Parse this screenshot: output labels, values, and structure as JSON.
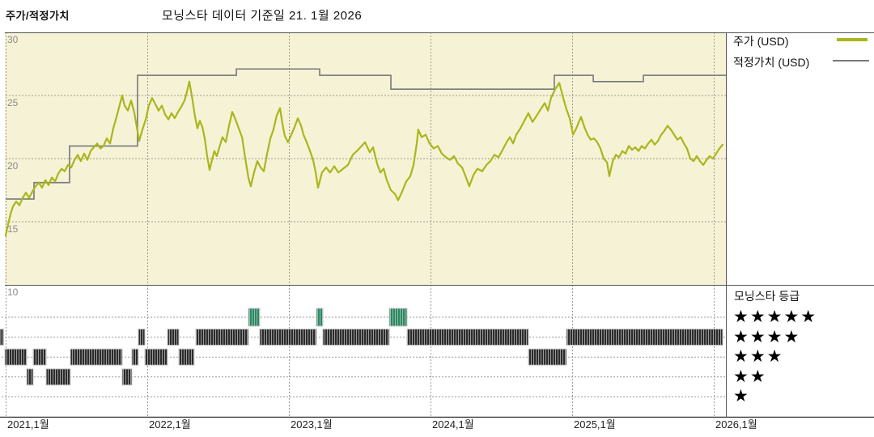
{
  "header": {
    "panel_title": "주가/적정가치",
    "chart_title": "모닝스타 데이터 기준일 21. 1월 2026"
  },
  "legend": {
    "price_label": "주가 (USD)",
    "fair_value_label": "적정가치 (USD)"
  },
  "ratings_panel": {
    "title": "모닝스타 등급",
    "levels": [
      5,
      4,
      3,
      2,
      1
    ],
    "star_glyph": "★"
  },
  "colors": {
    "price_line": "#aab61c",
    "fair_value_line": "#787878",
    "chart_background": "#f6f2d6",
    "rating_bar": "#2b2b2b",
    "rating_bar_gap": "#9a9a9a",
    "five_star_bar": "#2f8563",
    "five_star_gap": "#8cc0aa",
    "grid": "#a09c8e",
    "axis_text": "#222222",
    "ytick_text": "#8c8c8c",
    "border": "#555555"
  },
  "chart_data": {
    "type": "line",
    "title": "모닝스타 데이터 기준일 21. 1월 2026",
    "ylabel": "",
    "xlabel": "",
    "ylim": [
      10,
      30
    ],
    "xlim": [
      2021.0,
      2026.09
    ],
    "grid": true,
    "legend_position": "top-right",
    "y_ticks": [
      30,
      25,
      20,
      15,
      10
    ],
    "x_ticks": [
      {
        "t": 2021,
        "label": "2021,1월"
      },
      {
        "t": 2022,
        "label": "2022,1월"
      },
      {
        "t": 2023,
        "label": "2023,1월"
      },
      {
        "t": 2024,
        "label": "2024,1월"
      },
      {
        "t": 2025,
        "label": "2025,1월"
      },
      {
        "t": 2026,
        "label": "2026,1월"
      }
    ],
    "series": [
      {
        "name": "주가 (USD)",
        "kind": "price",
        "points": [
          [
            2021.0,
            13.9
          ],
          [
            2021.017,
            14.8
          ],
          [
            2021.034,
            15.6
          ],
          [
            2021.051,
            16.2
          ],
          [
            2021.074,
            16.6
          ],
          [
            2021.097,
            16.3
          ],
          [
            2021.12,
            16.9
          ],
          [
            2021.143,
            17.3
          ],
          [
            2021.166,
            16.9
          ],
          [
            2021.189,
            17.4
          ],
          [
            2021.211,
            17.8
          ],
          [
            2021.234,
            18.1
          ],
          [
            2021.257,
            17.7
          ],
          [
            2021.28,
            18.3
          ],
          [
            2021.303,
            17.9
          ],
          [
            2021.326,
            18.5
          ],
          [
            2021.349,
            18.2
          ],
          [
            2021.371,
            18.8
          ],
          [
            2021.394,
            19.2
          ],
          [
            2021.417,
            19.0
          ],
          [
            2021.44,
            19.5
          ],
          [
            2021.463,
            19.3
          ],
          [
            2021.486,
            19.9
          ],
          [
            2021.509,
            20.3
          ],
          [
            2021.531,
            19.8
          ],
          [
            2021.554,
            20.4
          ],
          [
            2021.577,
            19.9
          ],
          [
            2021.6,
            20.6
          ],
          [
            2021.623,
            20.9
          ],
          [
            2021.646,
            21.2
          ],
          [
            2021.669,
            20.8
          ],
          [
            2021.691,
            21.0
          ],
          [
            2021.714,
            21.6
          ],
          [
            2021.737,
            21.2
          ],
          [
            2021.76,
            22.4
          ],
          [
            2021.783,
            23.3
          ],
          [
            2021.806,
            24.3
          ],
          [
            2021.823,
            25.0
          ],
          [
            2021.84,
            24.2
          ],
          [
            2021.863,
            23.8
          ],
          [
            2021.886,
            24.6
          ],
          [
            2021.909,
            23.6
          ],
          [
            2021.926,
            22.5
          ],
          [
            2021.943,
            21.4
          ],
          [
            2021.966,
            22.3
          ],
          [
            2021.989,
            23.1
          ],
          [
            2022.011,
            24.2
          ],
          [
            2022.034,
            24.8
          ],
          [
            2022.057,
            24.3
          ],
          [
            2022.08,
            23.8
          ],
          [
            2022.103,
            24.2
          ],
          [
            2022.126,
            23.5
          ],
          [
            2022.149,
            23.1
          ],
          [
            2022.171,
            23.6
          ],
          [
            2022.194,
            23.2
          ],
          [
            2022.217,
            23.7
          ],
          [
            2022.24,
            24.1
          ],
          [
            2022.263,
            24.6
          ],
          [
            2022.28,
            25.3
          ],
          [
            2022.297,
            26.1
          ],
          [
            2022.32,
            24.6
          ],
          [
            2022.337,
            23.3
          ],
          [
            2022.354,
            22.4
          ],
          [
            2022.371,
            23.0
          ],
          [
            2022.389,
            22.5
          ],
          [
            2022.406,
            21.6
          ],
          [
            2022.423,
            20.2
          ],
          [
            2022.44,
            19.1
          ],
          [
            2022.457,
            19.9
          ],
          [
            2022.474,
            20.6
          ],
          [
            2022.491,
            20.2
          ],
          [
            2022.509,
            20.9
          ],
          [
            2022.531,
            21.7
          ],
          [
            2022.554,
            21.3
          ],
          [
            2022.577,
            22.6
          ],
          [
            2022.6,
            23.7
          ],
          [
            2022.623,
            23.1
          ],
          [
            2022.646,
            22.4
          ],
          [
            2022.669,
            21.7
          ],
          [
            2022.691,
            20.1
          ],
          [
            2022.714,
            18.5
          ],
          [
            2022.731,
            17.8
          ],
          [
            2022.754,
            18.9
          ],
          [
            2022.777,
            19.8
          ],
          [
            2022.8,
            19.3
          ],
          [
            2022.823,
            19.0
          ],
          [
            2022.846,
            20.4
          ],
          [
            2022.869,
            21.6
          ],
          [
            2022.891,
            22.3
          ],
          [
            2022.914,
            23.4
          ],
          [
            2022.937,
            24.0
          ],
          [
            2022.954,
            22.8
          ],
          [
            2022.971,
            21.8
          ],
          [
            2022.994,
            21.3
          ],
          [
            2023.017,
            21.9
          ],
          [
            2023.04,
            22.5
          ],
          [
            2023.063,
            23.2
          ],
          [
            2023.086,
            22.6
          ],
          [
            2023.103,
            21.9
          ],
          [
            2023.126,
            21.3
          ],
          [
            2023.149,
            20.6
          ],
          [
            2023.171,
            19.9
          ],
          [
            2023.189,
            18.9
          ],
          [
            2023.206,
            17.7
          ],
          [
            2023.234,
            18.9
          ],
          [
            2023.263,
            19.3
          ],
          [
            2023.291,
            18.9
          ],
          [
            2023.32,
            19.4
          ],
          [
            2023.349,
            18.9
          ],
          [
            2023.383,
            19.2
          ],
          [
            2023.417,
            19.5
          ],
          [
            2023.451,
            20.3
          ],
          [
            2023.48,
            20.6
          ],
          [
            2023.514,
            21.0
          ],
          [
            2023.537,
            21.3
          ],
          [
            2023.571,
            20.5
          ],
          [
            2023.594,
            20.9
          ],
          [
            2023.623,
            19.6
          ],
          [
            2023.646,
            18.9
          ],
          [
            2023.669,
            19.2
          ],
          [
            2023.691,
            18.3
          ],
          [
            2023.72,
            17.5
          ],
          [
            2023.749,
            17.2
          ],
          [
            2023.771,
            16.7
          ],
          [
            2023.8,
            17.4
          ],
          [
            2023.829,
            18.2
          ],
          [
            2023.857,
            18.6
          ],
          [
            2023.88,
            19.5
          ],
          [
            2023.903,
            21.2
          ],
          [
            2023.914,
            22.3
          ],
          [
            2023.937,
            21.7
          ],
          [
            2023.966,
            21.9
          ],
          [
            2023.994,
            21.2
          ],
          [
            2024.023,
            20.8
          ],
          [
            2024.051,
            21.0
          ],
          [
            2024.08,
            20.4
          ],
          [
            2024.109,
            20.1
          ],
          [
            2024.137,
            19.9
          ],
          [
            2024.166,
            20.2
          ],
          [
            2024.194,
            19.6
          ],
          [
            2024.223,
            19.3
          ],
          [
            2024.251,
            18.5
          ],
          [
            2024.274,
            17.8
          ],
          [
            2024.303,
            18.7
          ],
          [
            2024.331,
            19.2
          ],
          [
            2024.366,
            19.0
          ],
          [
            2024.394,
            19.5
          ],
          [
            2024.423,
            19.8
          ],
          [
            2024.451,
            20.3
          ],
          [
            2024.48,
            20.1
          ],
          [
            2024.509,
            20.7
          ],
          [
            2024.537,
            21.3
          ],
          [
            2024.56,
            21.7
          ],
          [
            2024.583,
            21.2
          ],
          [
            2024.606,
            21.9
          ],
          [
            2024.634,
            22.4
          ],
          [
            2024.663,
            23.0
          ],
          [
            2024.691,
            23.6
          ],
          [
            2024.72,
            22.9
          ],
          [
            2024.749,
            23.4
          ],
          [
            2024.777,
            23.9
          ],
          [
            2024.806,
            24.4
          ],
          [
            2024.829,
            23.8
          ],
          [
            2024.851,
            24.8
          ],
          [
            2024.88,
            25.5
          ],
          [
            2024.909,
            26.0
          ],
          [
            2024.937,
            24.8
          ],
          [
            2024.96,
            23.9
          ],
          [
            2024.983,
            23.2
          ],
          [
            2025.006,
            21.9
          ],
          [
            2025.029,
            22.4
          ],
          [
            2025.051,
            23.0
          ],
          [
            2025.063,
            23.3
          ],
          [
            2025.086,
            22.5
          ],
          [
            2025.109,
            21.9
          ],
          [
            2025.131,
            21.5
          ],
          [
            2025.154,
            21.6
          ],
          [
            2025.177,
            21.3
          ],
          [
            2025.2,
            20.8
          ],
          [
            2025.223,
            20.0
          ],
          [
            2025.246,
            19.7
          ],
          [
            2025.263,
            18.6
          ],
          [
            2025.286,
            19.8
          ],
          [
            2025.309,
            20.3
          ],
          [
            2025.331,
            20.1
          ],
          [
            2025.354,
            20.6
          ],
          [
            2025.377,
            20.4
          ],
          [
            2025.4,
            21.0
          ],
          [
            2025.423,
            20.7
          ],
          [
            2025.446,
            20.9
          ],
          [
            2025.469,
            20.6
          ],
          [
            2025.491,
            21.0
          ],
          [
            2025.514,
            20.8
          ],
          [
            2025.537,
            21.2
          ],
          [
            2025.56,
            21.5
          ],
          [
            2025.583,
            21.1
          ],
          [
            2025.606,
            21.4
          ],
          [
            2025.629,
            21.9
          ],
          [
            2025.651,
            22.2
          ],
          [
            2025.674,
            22.6
          ],
          [
            2025.697,
            22.3
          ],
          [
            2025.72,
            21.9
          ],
          [
            2025.743,
            21.5
          ],
          [
            2025.766,
            21.7
          ],
          [
            2025.789,
            21.2
          ],
          [
            2025.811,
            20.8
          ],
          [
            2025.834,
            20.0
          ],
          [
            2025.857,
            19.8
          ],
          [
            2025.88,
            20.2
          ],
          [
            2025.903,
            19.8
          ],
          [
            2025.926,
            19.5
          ],
          [
            2025.949,
            19.9
          ],
          [
            2025.971,
            20.2
          ],
          [
            2025.994,
            20.0
          ],
          [
            2026.017,
            20.4
          ],
          [
            2026.04,
            20.8
          ],
          [
            2026.063,
            21.1
          ]
        ]
      },
      {
        "name": "적정가치 (USD)",
        "kind": "step",
        "steps": [
          [
            2021.0,
            2021.2,
            16.8
          ],
          [
            2021.2,
            2021.451,
            18.1
          ],
          [
            2021.451,
            2021.931,
            21.0
          ],
          [
            2021.931,
            2022.629,
            26.6
          ],
          [
            2022.629,
            2023.217,
            27.1
          ],
          [
            2023.217,
            2023.72,
            26.6
          ],
          [
            2023.72,
            2024.874,
            25.5
          ],
          [
            2024.874,
            2025.149,
            26.6
          ],
          [
            2025.149,
            2025.503,
            26.1
          ],
          [
            2025.503,
            2026.086,
            26.6
          ]
        ]
      }
    ],
    "ratings_timeline": {
      "row_values": [
        5,
        4,
        3,
        2,
        1
      ],
      "segments": [
        [
          2020.96,
          2020.985,
          4
        ],
        [
          2020.995,
          2021.149,
          3
        ],
        [
          2021.149,
          2021.194,
          2
        ],
        [
          2021.194,
          2021.286,
          3
        ],
        [
          2021.286,
          2021.457,
          2
        ],
        [
          2021.457,
          2021.823,
          3
        ],
        [
          2021.823,
          2021.891,
          2
        ],
        [
          2021.891,
          2021.937,
          3
        ],
        [
          2021.937,
          2021.983,
          4
        ],
        [
          2021.983,
          2022.143,
          3
        ],
        [
          2022.143,
          2022.223,
          4
        ],
        [
          2022.223,
          2022.331,
          3
        ],
        [
          2022.343,
          2022.714,
          4
        ],
        [
          2022.714,
          2022.794,
          5
        ],
        [
          2022.794,
          2023.194,
          4
        ],
        [
          2023.194,
          2023.24,
          5
        ],
        [
          2023.24,
          2023.709,
          4
        ],
        [
          2023.709,
          2023.834,
          5
        ],
        [
          2023.834,
          2024.691,
          4
        ],
        [
          2024.691,
          2024.96,
          3
        ],
        [
          2024.96,
          2026.063,
          4
        ]
      ]
    }
  }
}
